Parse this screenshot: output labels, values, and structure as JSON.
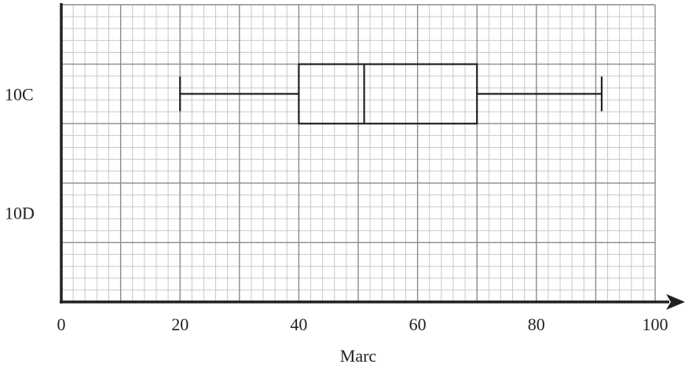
{
  "chart_data": {
    "type": "boxplot",
    "title": "",
    "xlabel": "Marc",
    "ylabel": "",
    "xlim": [
      0,
      100
    ],
    "x_ticks": [
      0,
      20,
      40,
      60,
      80,
      100
    ],
    "x_tick_labels": [
      "0",
      "20",
      "40",
      "60",
      "80",
      "100"
    ],
    "grid": true,
    "categories": [
      "10C",
      "10D"
    ],
    "series": [
      {
        "category": "10C",
        "min": 20,
        "q1": 40,
        "median": 51,
        "q3": 70,
        "max": 91
      }
    ],
    "colors": {
      "grid_minor": "#c8c8c8",
      "grid_major": "#8a8a8a",
      "ink": "#231f20"
    }
  }
}
